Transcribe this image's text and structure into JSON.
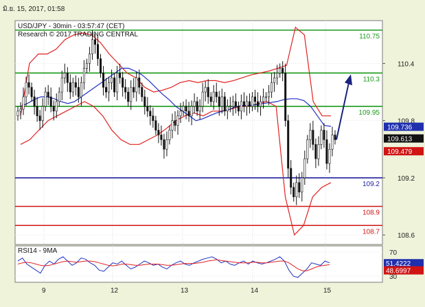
{
  "timestamp": "มิ.ย. 15, 2017, 01:58",
  "chart_data": {
    "type": "candlestick",
    "header": {
      "line1": "USD/JPY - 30min - 03:57:47 (CET)",
      "line2": "Research © 2017 TRADING CENTRAL"
    },
    "x_tick_labels": [
      "9",
      "12",
      "13",
      "14",
      "15"
    ],
    "y_ticks": [
      "110.4",
      "109.8",
      "109.2",
      "108.6"
    ],
    "ylim": [
      108.5,
      110.85
    ],
    "levels": [
      {
        "label": "110.75",
        "value": 110.75,
        "color": "#1a9a1a"
      },
      {
        "label": "110.3",
        "value": 110.3,
        "color": "#1a9a1a"
      },
      {
        "label": "109.95",
        "value": 109.95,
        "color": "#1a9a1a"
      },
      {
        "label": "109.2",
        "value": 109.2,
        "color": "#1f1f9e"
      },
      {
        "label": "108.9",
        "value": 108.9,
        "color": "#d01414"
      },
      {
        "label": "108.7",
        "value": 108.7,
        "color": "#d01414"
      }
    ],
    "price_badges": [
      {
        "label": "109.736",
        "value": 109.736,
        "color": "#1f2fae"
      },
      {
        "label": "109.613",
        "value": 109.613,
        "color": "#111111"
      },
      {
        "label": "109.479",
        "value": 109.479,
        "color": "#d01414"
      }
    ],
    "closes": [
      109.9,
      109.92,
      110.05,
      110.2,
      110.15,
      110.05,
      109.95,
      109.85,
      109.8,
      109.95,
      110.1,
      110.05,
      109.95,
      109.9,
      110.0,
      110.1,
      110.25,
      110.3,
      110.2,
      110.1,
      110.2,
      110.15,
      110.05,
      110.2,
      110.35,
      110.4,
      110.5,
      110.65,
      110.6,
      110.45,
      110.3,
      110.15,
      110.1,
      110.2,
      110.25,
      110.1,
      110.3,
      110.25,
      110.15,
      110.1,
      110.0,
      110.15,
      110.1,
      110.25,
      110.15,
      110.05,
      109.95,
      109.9,
      109.85,
      109.8,
      109.7,
      109.65,
      109.6,
      109.5,
      109.6,
      109.7,
      109.8,
      109.75,
      109.85,
      109.9,
      109.95,
      109.9,
      109.85,
      109.95,
      110.0,
      109.9,
      109.95,
      110.1,
      110.15,
      110.05,
      110.0,
      110.1,
      110.05,
      109.95,
      110.05,
      109.9,
      109.95,
      109.95,
      110.0,
      109.95,
      109.9,
      110.0,
      109.95,
      110.0,
      109.95,
      110.05,
      110.0,
      109.95,
      110.0,
      110.05,
      110.05,
      110.1,
      110.2,
      110.25,
      110.3,
      110.35,
      110.3,
      109.8,
      109.3,
      109.1,
      109.0,
      109.15,
      109.05,
      109.2,
      109.4,
      109.6,
      109.7,
      109.55,
      109.4,
      109.55,
      109.7,
      109.6,
      109.35,
      109.5,
      109.65,
      109.6
    ],
    "ma_fast": [
      109.95,
      109.98,
      110.02,
      110.05,
      110.05,
      110.03,
      110.0,
      109.98,
      110.0,
      110.05,
      110.1,
      110.15,
      110.2,
      110.25,
      110.3,
      110.35,
      110.35,
      110.32,
      110.28,
      110.22,
      110.15,
      110.08,
      110.02,
      109.95,
      109.9,
      109.85,
      109.8,
      109.82,
      109.85,
      109.88,
      109.9,
      109.92,
      109.95,
      109.96,
      109.96,
      109.97,
      109.98,
      109.99,
      110.0,
      110.02,
      110.03,
      110.03,
      110.01,
      109.95,
      109.85,
      109.75,
      109.74
    ],
    "bb_upper": [
      109.85,
      110.4,
      110.5,
      110.5,
      110.55,
      110.65,
      110.7,
      110.72,
      110.7,
      110.62,
      110.5,
      110.4,
      110.3,
      110.25,
      110.15,
      110.1,
      110.12,
      110.15,
      110.2,
      110.22,
      110.2,
      110.22,
      110.22,
      110.2,
      110.22,
      110.25,
      110.28,
      110.3,
      110.32,
      110.35,
      110.38,
      110.78,
      110.7,
      110.0,
      109.85,
      109.85
    ],
    "bb_lower": [
      109.55,
      109.6,
      109.7,
      109.8,
      109.85,
      109.9,
      109.95,
      110.0,
      109.95,
      109.85,
      109.7,
      109.6,
      109.55,
      109.55,
      109.6,
      109.65,
      109.72,
      109.8,
      109.85,
      109.88,
      109.85,
      109.9,
      109.9,
      109.92,
      109.95,
      109.95,
      109.98,
      110.0,
      109.95,
      109.0,
      108.6,
      108.7,
      109.0,
      109.1,
      109.15
    ],
    "rsi": {
      "label": "RSI14 - 9MA",
      "ticks": [
        "70",
        "30"
      ],
      "ylim": [
        20,
        80
      ],
      "badges": [
        {
          "label": "51.4222",
          "value": 51.4222,
          "color": "#1f2fae"
        },
        {
          "label": "48.6997",
          "value": 48.6997,
          "color": "#d01414"
        }
      ],
      "rsi_values": [
        55,
        60,
        50,
        45,
        40,
        35,
        48,
        55,
        50,
        58,
        62,
        55,
        48,
        52,
        60,
        58,
        52,
        48,
        40,
        38,
        45,
        52,
        50,
        55,
        48,
        42,
        45,
        50,
        55,
        52,
        48,
        50,
        45,
        42,
        48,
        52,
        55,
        50,
        48,
        52,
        55,
        58,
        60,
        62,
        58,
        52,
        55,
        50,
        48,
        52,
        55,
        50,
        55,
        52,
        50,
        52,
        55,
        58,
        62,
        55,
        40,
        30,
        28,
        35,
        42,
        52,
        50,
        48,
        55,
        52
      ],
      "ma_values": [
        50,
        52,
        53,
        52,
        50,
        48,
        47,
        48,
        50,
        52,
        54,
        55,
        54,
        53,
        54,
        55,
        55,
        54,
        52,
        50,
        48,
        47,
        48,
        50,
        50,
        49,
        48,
        48,
        49,
        50,
        50,
        50,
        49,
        48,
        48,
        49,
        50,
        51,
        51,
        51,
        52,
        53,
        55,
        56,
        57,
        56,
        55,
        54,
        53,
        52,
        52,
        52,
        53,
        53,
        52,
        52,
        53,
        54,
        55,
        55,
        52,
        47,
        42,
        39,
        39,
        42,
        45,
        47,
        48,
        49
      ]
    }
  }
}
